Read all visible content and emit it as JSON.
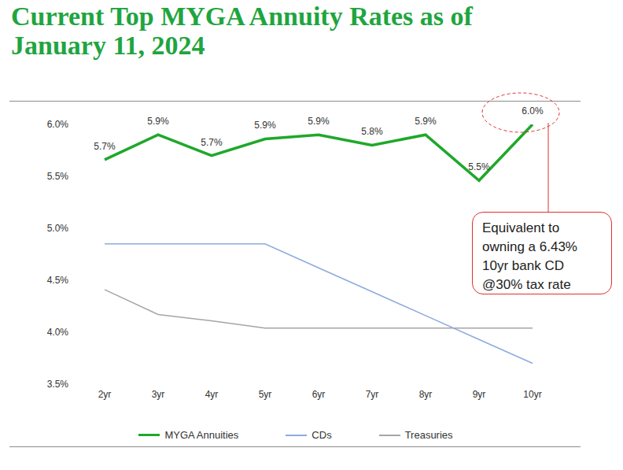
{
  "chart_data": {
    "type": "line",
    "title": "Current Top MYGA Annuity Rates as of January 11, 2024",
    "categories": [
      "2yr",
      "3yr",
      "4yr",
      "5yr",
      "6yr",
      "7yr",
      "8yr",
      "9yr",
      "10yr"
    ],
    "series": [
      {
        "name": "MYGA Annuities",
        "color": "#1fa82a",
        "values": [
          5.66,
          5.9,
          5.7,
          5.86,
          5.9,
          5.8,
          5.9,
          5.46,
          6.0
        ],
        "value_labels": [
          "5.7%",
          "5.9%",
          "5.7%",
          "5.9%",
          "5.9%",
          "5.8%",
          "5.9%",
          "5.5%",
          "6.0%"
        ],
        "data_labels": true
      },
      {
        "name": "CDs",
        "color": "#8eaadf",
        "values": [
          4.85,
          4.85,
          4.85,
          4.85,
          4.62,
          4.39,
          4.16,
          3.93,
          3.7
        ]
      },
      {
        "name": "Treasuries",
        "color": "#a5a5a5",
        "values": [
          4.41,
          4.17,
          4.11,
          4.04,
          4.04,
          4.04,
          4.04,
          4.04,
          4.04
        ]
      }
    ],
    "ylim": [
      3.5,
      6.0
    ],
    "yticks": [
      {
        "value": 3.5,
        "label": "3.5%"
      },
      {
        "value": 4.0,
        "label": "4.0%"
      },
      {
        "value": 4.5,
        "label": "4.5%"
      },
      {
        "value": 5.0,
        "label": "5.0%"
      },
      {
        "value": 5.5,
        "label": "5.5%"
      },
      {
        "value": 6.0,
        "label": "6.0%"
      }
    ],
    "grid": false,
    "legend": "bottom",
    "annotation": [
      "Equivalent to",
      "owning a 6.43%",
      "10yr bank CD",
      "@30% tax rate"
    ]
  }
}
